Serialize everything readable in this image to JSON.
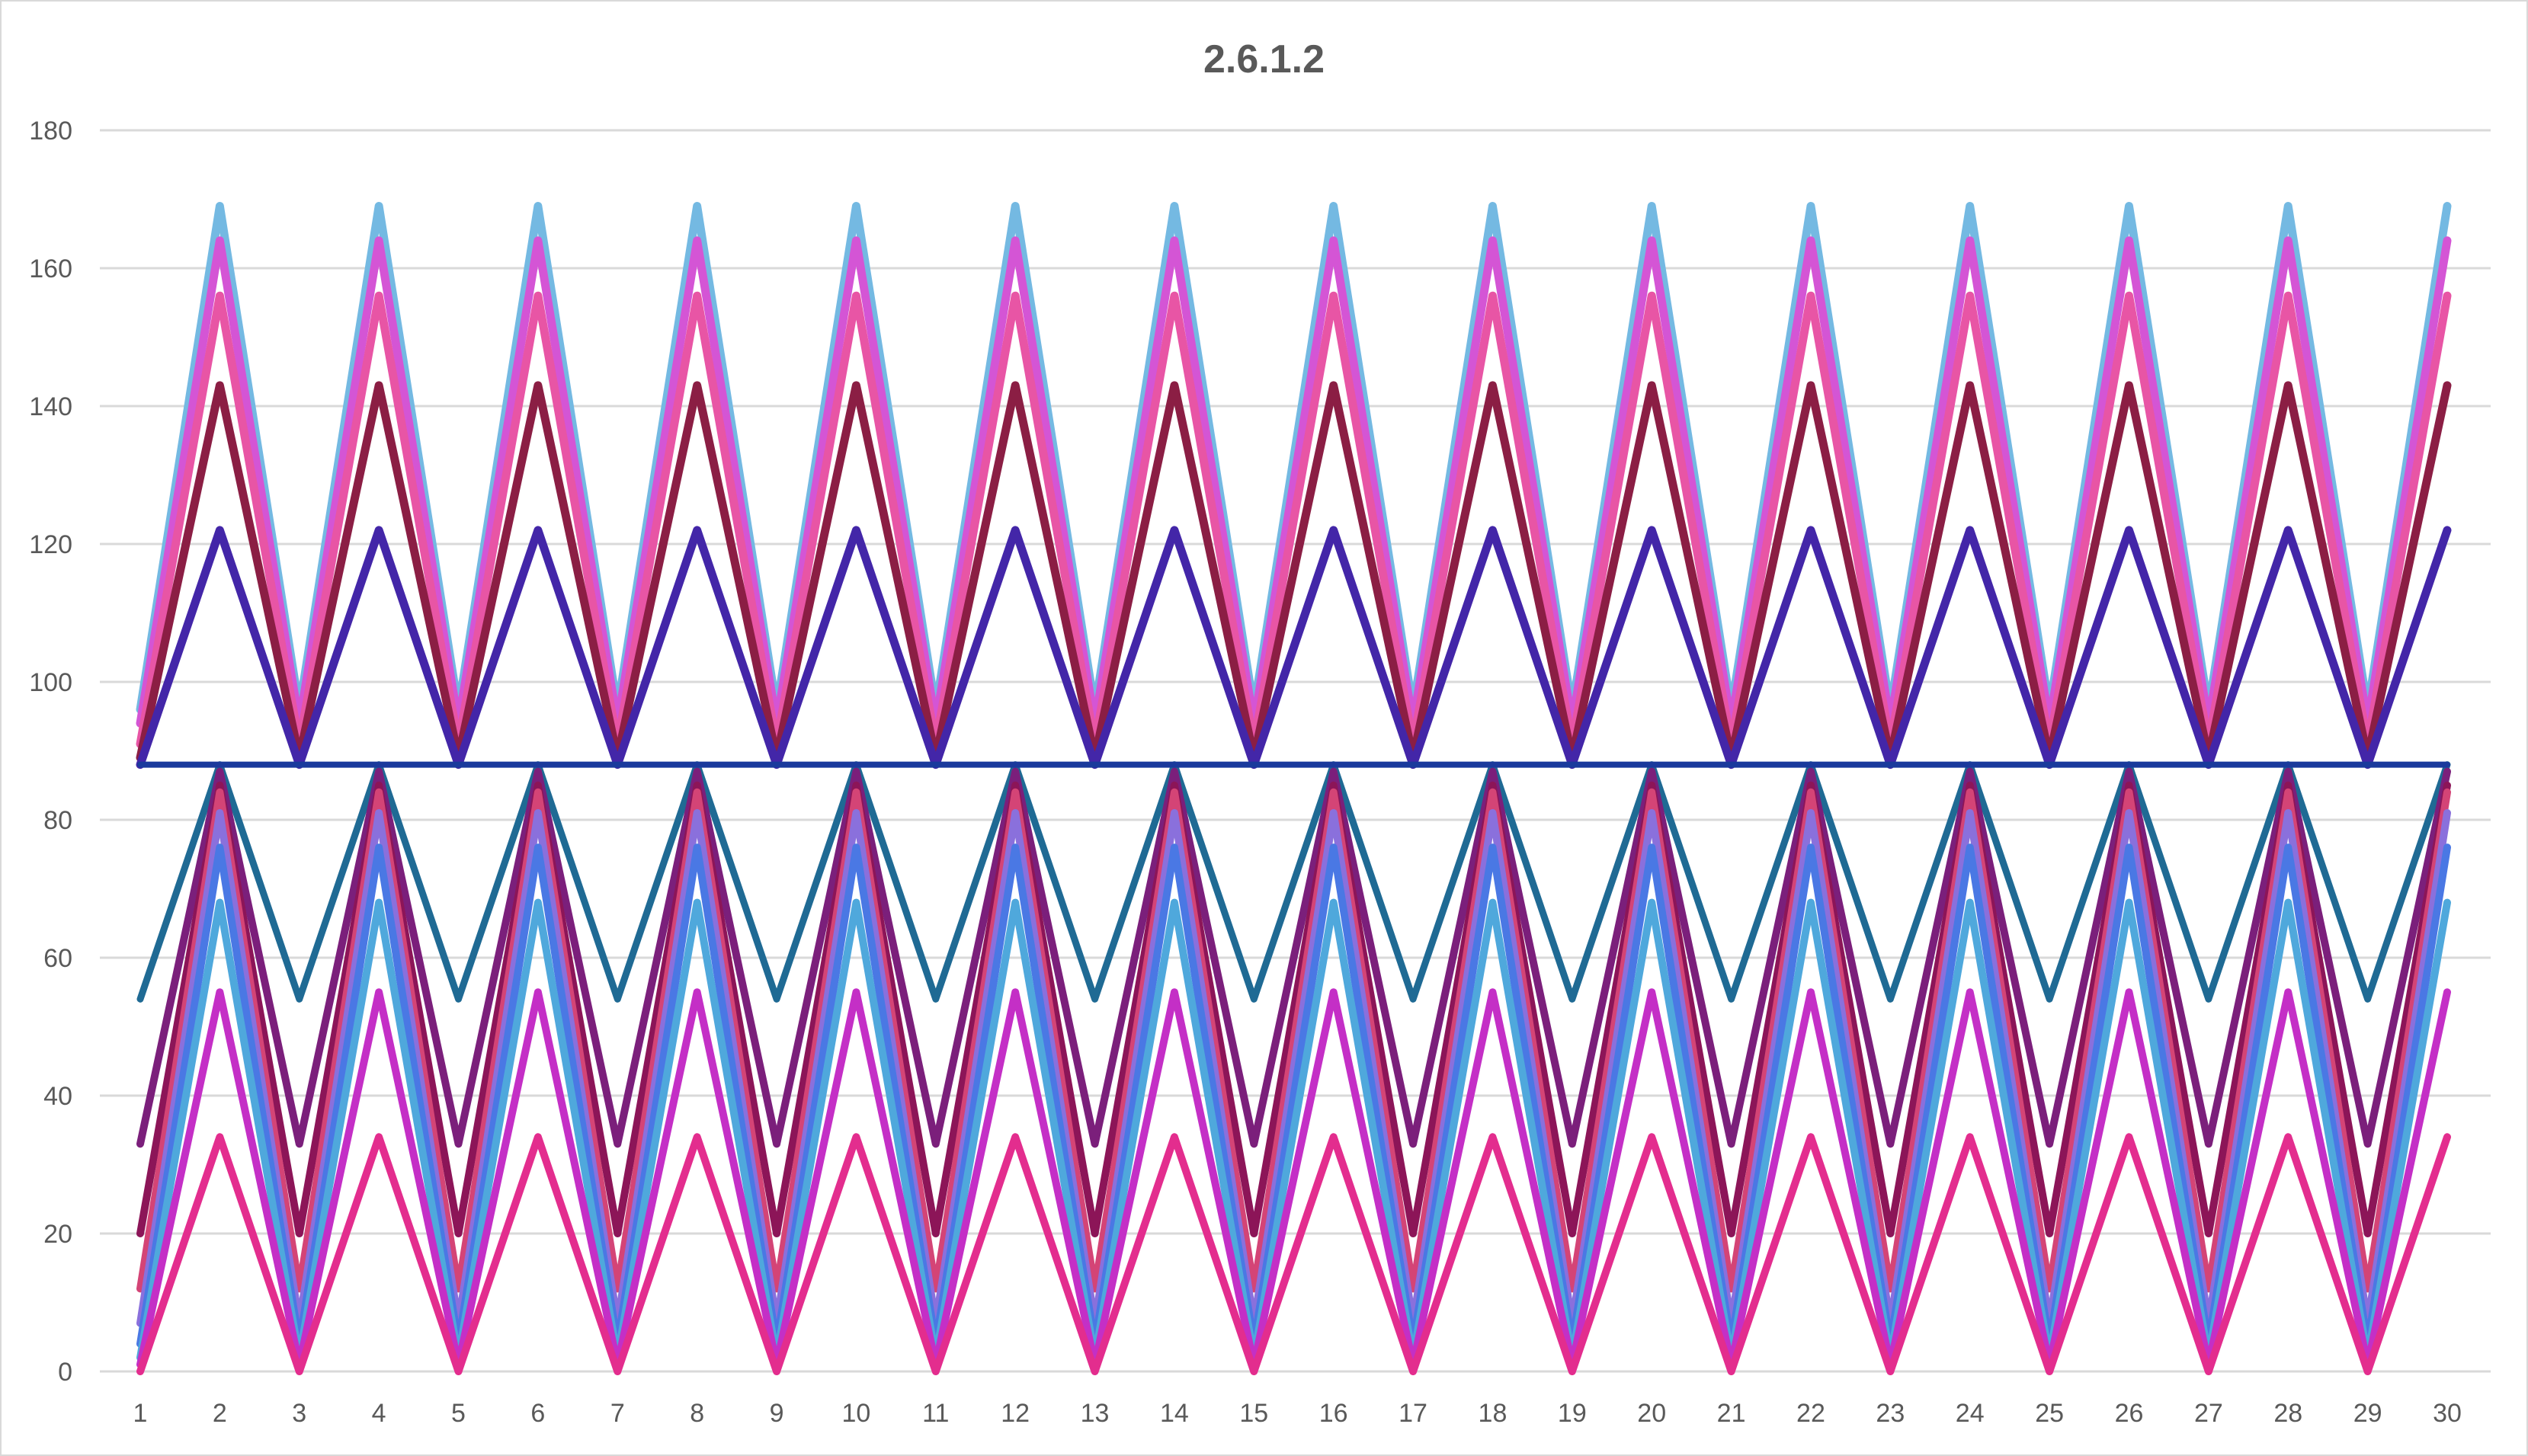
{
  "chart_data": {
    "type": "line",
    "title": "2.6.1.2",
    "xlabel": "",
    "ylabel": "",
    "x": [
      1,
      2,
      3,
      4,
      5,
      6,
      7,
      8,
      9,
      10,
      11,
      12,
      13,
      14,
      15,
      16,
      17,
      18,
      19,
      20,
      21,
      22,
      23,
      24,
      25,
      26,
      27,
      28,
      29,
      30
    ],
    "ylim": [
      0,
      180
    ],
    "yticks": [
      0,
      20,
      40,
      60,
      80,
      100,
      120,
      140,
      160,
      180
    ],
    "grid": true,
    "legend": "none",
    "series_pattern": "odd x = low value, even x = high value",
    "series": [
      {
        "low": 54,
        "high": 88,
        "color": "#1F6A94"
      },
      {
        "low": 33,
        "high": 87,
        "color": "#7B1F7B"
      },
      {
        "low": 20,
        "high": 85,
        "color": "#8C1558"
      },
      {
        "low": 12,
        "high": 84,
        "color": "#D44476"
      },
      {
        "low": 7,
        "high": 81,
        "color": "#8A70DC"
      },
      {
        "low": 4,
        "high": 76,
        "color": "#4A78E4"
      },
      {
        "low": 2,
        "high": 68,
        "color": "#4FA8DC"
      },
      {
        "low": 1,
        "high": 55,
        "color": "#C42FC6"
      },
      {
        "low": 0,
        "high": 34,
        "color": "#E32D8E"
      },
      {
        "low": 96,
        "high": 169,
        "color": "#74B9E2"
      },
      {
        "low": 94,
        "high": 164,
        "color": "#D455D5"
      },
      {
        "low": 91,
        "high": 156,
        "color": "#E855A5"
      },
      {
        "low": 89,
        "high": 143,
        "color": "#8B1E44"
      },
      {
        "low": 88,
        "high": 122,
        "color": "#4326A8"
      },
      {
        "low": 88,
        "high": 88,
        "color": "#1A3A9C"
      }
    ]
  }
}
